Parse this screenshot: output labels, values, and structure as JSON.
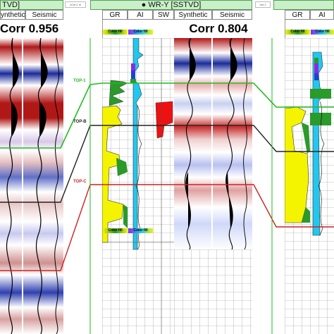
{
  "panels": {
    "left": {
      "header": "TVD]",
      "tracks": [
        "ynthetic",
        "Seismic"
      ],
      "corr_label": "Corr 0.956"
    },
    "gap_left": {
      "scale": "1Cm:1 m"
    },
    "middle": {
      "header": "WR-Y [SSTVD]",
      "tracks": [
        "GR",
        "AI",
        "SW",
        "Synthetic",
        "Seismic"
      ],
      "corr_label": "Corr 0.804",
      "colorfill_label": "Color fill"
    },
    "gap_right": {
      "scale": "4m:1"
    },
    "right": {
      "tracks": [
        "GR",
        "AI"
      ],
      "colorfill_label": "Color fill"
    }
  },
  "tops": [
    {
      "name": "TOP-1",
      "color": "#22bb22"
    },
    {
      "name": "TOP-B",
      "color": "#222222"
    },
    {
      "name": "TOP-C",
      "color": "#cc2222"
    }
  ],
  "colors": {
    "seismic_red": "#b01818",
    "seismic_blue": "#1a2a9a",
    "gr_fill": "#f4f400",
    "gr_green": "#2a9a2a",
    "ai_fill": "#20c8f0",
    "sw_fill": "#ee1111",
    "header_green": "#c9f0c9"
  }
}
